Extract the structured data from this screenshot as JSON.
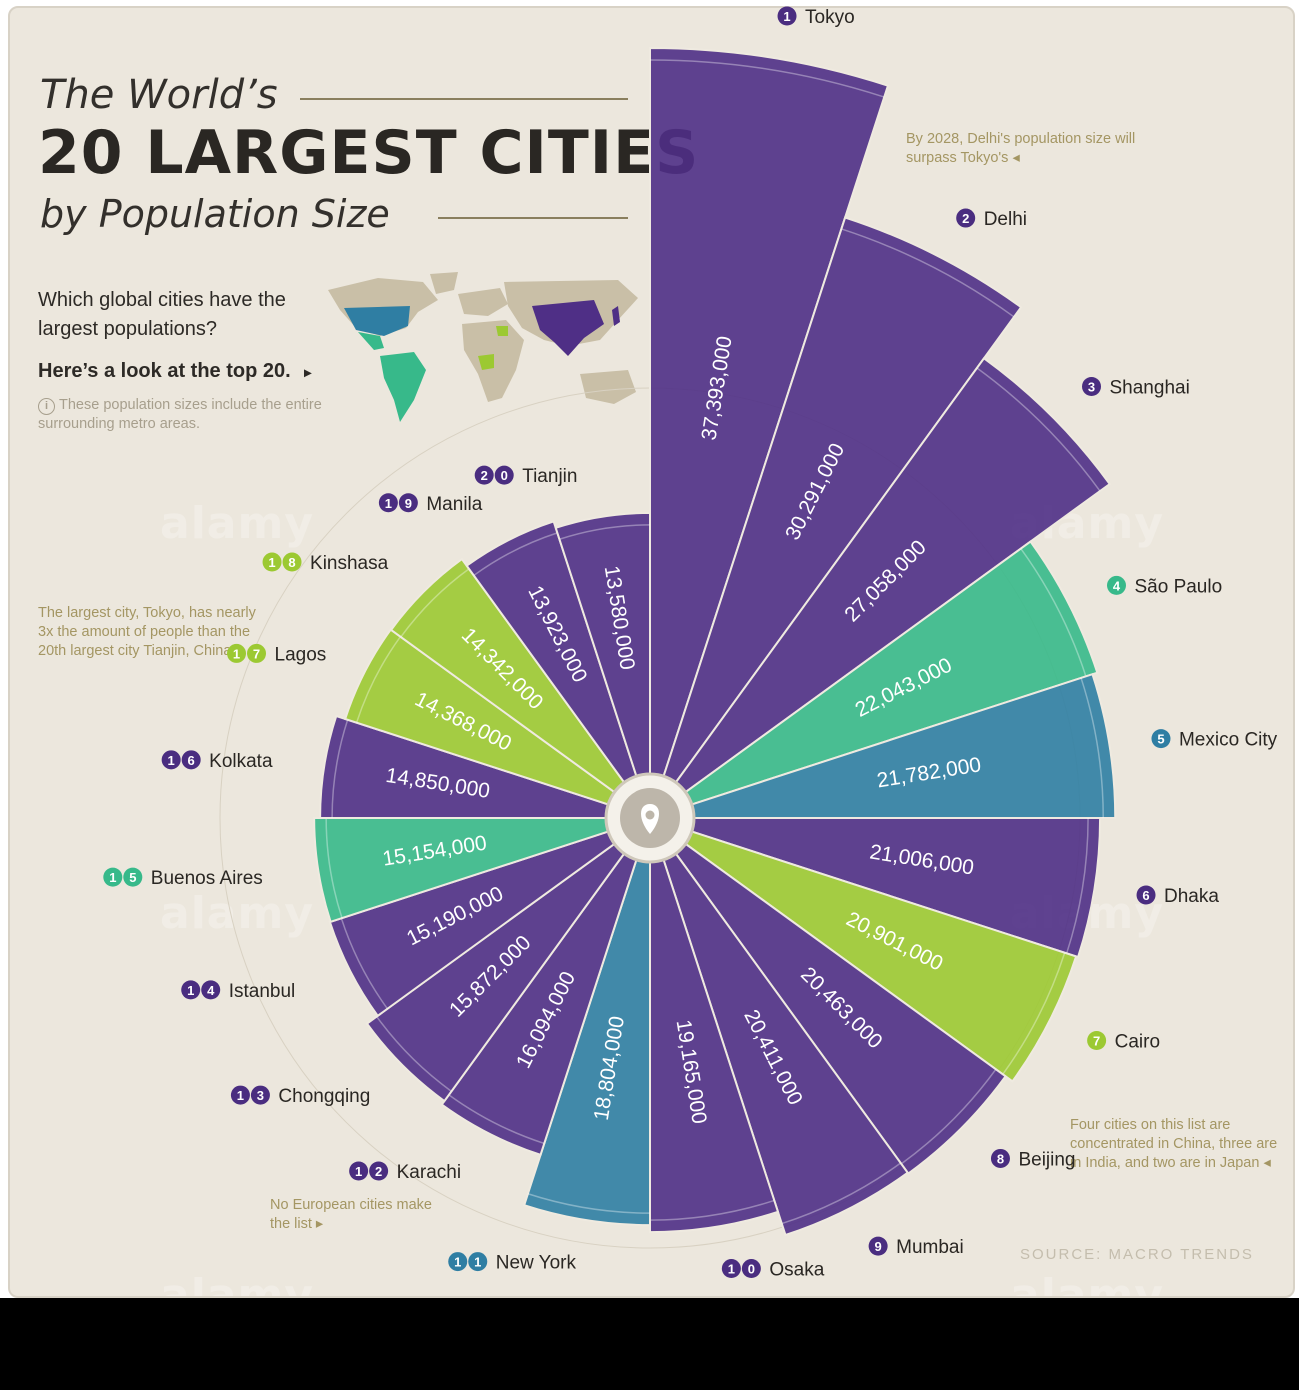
{
  "title": {
    "line1": "The World’s",
    "line2": "20 LARGEST CITIES",
    "line3": "by Population Size"
  },
  "intro": {
    "question": "Which global cities have the largest populations?",
    "lead": "Here’s a look at the top 20.",
    "lead_arrow": "▸",
    "info_icon": "i",
    "note": "These population sizes include the entire surrounding metro areas."
  },
  "annotations": {
    "delhi_forecast": "By 2028, Delhi's population size will surpass Tokyo's ◂",
    "tokyo_vs_tianjin": "The largest city, Tokyo, has nearly 3x the amount of people than the 20th largest city Tianjin, China ▸",
    "no_europe": "No European cities make the list ▸",
    "china_india_japan": "Four cities on this list are concentrated in China, three are in India, and two are in Japan ◂"
  },
  "source": "SOURCE:  MACRO TRENDS",
  "watermark": "alamy",
  "center_icon": "location-pin-icon",
  "colors": {
    "purple": "#4f2f86",
    "teal": "#37b98a",
    "blue": "#2f7ea3",
    "lime": "#9cc932",
    "badge_purple": "#4a2d80"
  },
  "chart_data": {
    "type": "radial-bar",
    "title": "The World’s 20 LARGEST CITIES by Population Size",
    "unit": "people",
    "categories": [
      "Tokyo",
      "Delhi",
      "Shanghai",
      "São Paulo",
      "Mexico City",
      "Dhaka",
      "Cairo",
      "Beijing",
      "Mumbai",
      "Osaka",
      "New York",
      "Karachi",
      "Chongqing",
      "Istanbul",
      "Buenos Aires",
      "Kolkata",
      "Lagos",
      "Kinshasa",
      "Manila",
      "Tianjin"
    ],
    "ranks": [
      1,
      2,
      3,
      4,
      5,
      6,
      7,
      8,
      9,
      10,
      11,
      12,
      13,
      14,
      15,
      16,
      17,
      18,
      19,
      20
    ],
    "values": [
      37393000,
      30291000,
      27058000,
      22043000,
      21782000,
      21006000,
      20901000,
      20463000,
      20411000,
      19165000,
      18804000,
      16094000,
      15872000,
      15190000,
      15154000,
      14850000,
      14368000,
      14342000,
      13923000,
      13580000
    ],
    "value_labels": [
      "37,393,000",
      "30,291,000",
      "27,058,000",
      "22,043,000",
      "21,782,000",
      "21,006,000",
      "20,901,000",
      "20,463,000",
      "20,411,000",
      "19,165,000",
      "18,804,000",
      "16,094,000",
      "15,872,000",
      "15,190,000",
      "15,154,000",
      "14,850,000",
      "14,368,000",
      "14,342,000",
      "13,923,000",
      "13,580,000"
    ],
    "continent_color": [
      "purple",
      "purple",
      "purple",
      "teal",
      "blue",
      "purple",
      "lime",
      "purple",
      "purple",
      "purple",
      "blue",
      "purple",
      "purple",
      "purple",
      "teal",
      "purple",
      "lime",
      "lime",
      "purple",
      "purple"
    ]
  }
}
